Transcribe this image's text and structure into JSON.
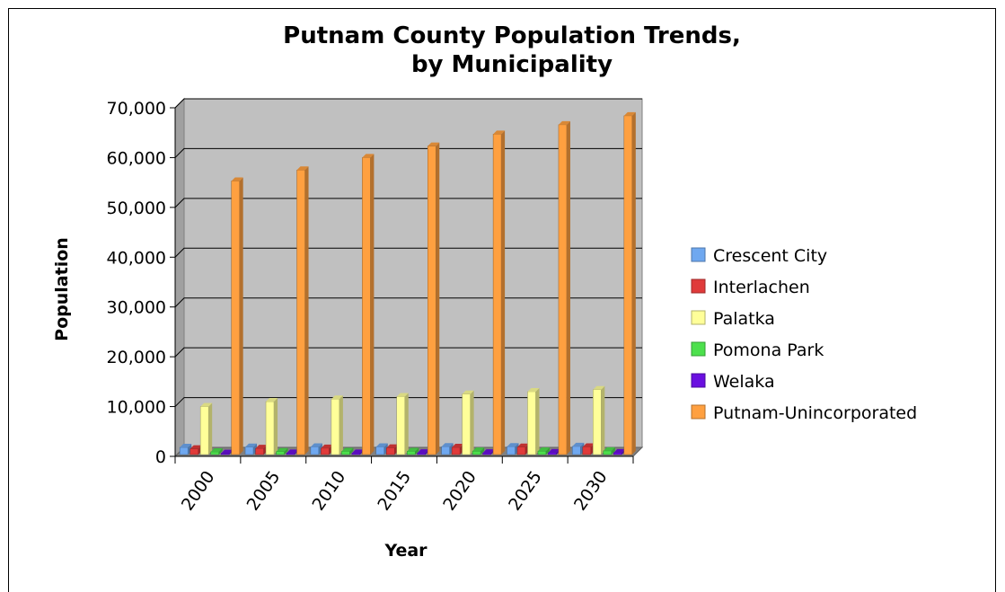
{
  "chart_data": {
    "type": "bar",
    "title": "Putnam County Population Trends,",
    "subtitle": "by Municipality",
    "xlabel": "Year",
    "ylabel": "Population",
    "categories": [
      "2000",
      "2005",
      "2010",
      "2015",
      "2020",
      "2025",
      "2030"
    ],
    "ylim": [
      0,
      70000
    ],
    "y_ticks": [
      "0",
      "10,000",
      "20,000",
      "30,000",
      "40,000",
      "50,000",
      "60,000",
      "70,000"
    ],
    "grid": true,
    "legend_position": "right",
    "series": [
      {
        "name": "Crescent City",
        "color": "#6FA8F0",
        "values": [
          1800,
          1850,
          1900,
          1900,
          1950,
          1950,
          2000
        ]
      },
      {
        "name": "Interlachen",
        "color": "#E03A3A",
        "values": [
          1500,
          1600,
          1650,
          1700,
          1800,
          1850,
          1900
        ]
      },
      {
        "name": "Palatka",
        "color": "#FFFF99",
        "values": [
          10000,
          11000,
          11500,
          12000,
          12500,
          13000,
          13400
        ]
      },
      {
        "name": "Pomona Park",
        "color": "#4CE04C",
        "values": [
          900,
          950,
          1000,
          1000,
          1050,
          1050,
          1100
        ]
      },
      {
        "name": "Welaka",
        "color": "#6A0FE0",
        "values": [
          600,
          650,
          650,
          700,
          700,
          750,
          750
        ]
      },
      {
        "name": "Putnam-Unincorporated",
        "color": "#FFA040",
        "values": [
          55300,
          57500,
          60000,
          62300,
          64700,
          66600,
          68400
        ]
      }
    ]
  }
}
